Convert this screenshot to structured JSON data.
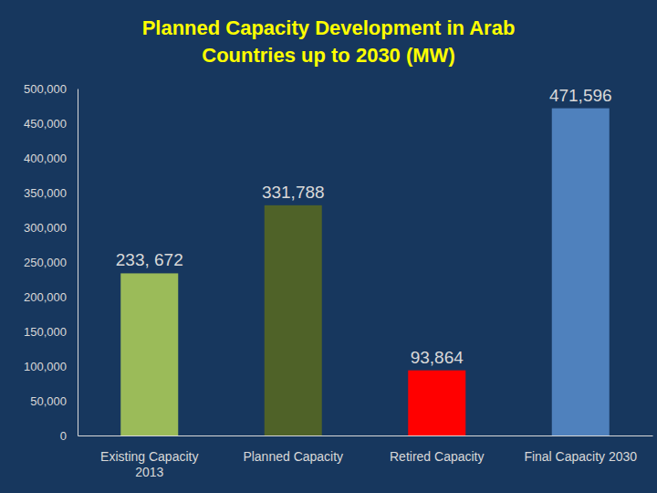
{
  "chart_data": {
    "type": "bar",
    "title": "Planned Capacity Development in Arab Countries up to 2030 (MW)",
    "categories": [
      "Existing Capacity 2013",
      "Planned Capacity",
      "Retired Capacity",
      "Final Capacity  2030"
    ],
    "values": [
      233672,
      331788,
      93864,
      471596
    ],
    "value_labels": [
      "233, 672",
      "331,788",
      "93,864",
      "471,596"
    ],
    "colors": [
      "#9bbb59",
      "#4f6228",
      "#ff0000",
      "#4f81bd"
    ],
    "ylim": [
      0,
      500000
    ],
    "yticks": [
      0,
      {
        "value": 50000,
        "label": "50,000"
      },
      {
        "value": 100000,
        "label": "100,000"
      },
      {
        "value": 150000,
        "label": "150,000"
      },
      {
        "value": 200000,
        "label": "200,000"
      },
      {
        "value": 250000,
        "label": "250,000"
      },
      {
        "value": 300000,
        "label": "300,000"
      },
      {
        "value": 350000,
        "label": "350,000"
      },
      {
        "value": 400000,
        "label": "400,000"
      },
      {
        "value": 450000,
        "label": "450,000"
      },
      {
        "value": 500000,
        "label": "500,000"
      }
    ],
    "grid": false,
    "data_labels": true
  }
}
